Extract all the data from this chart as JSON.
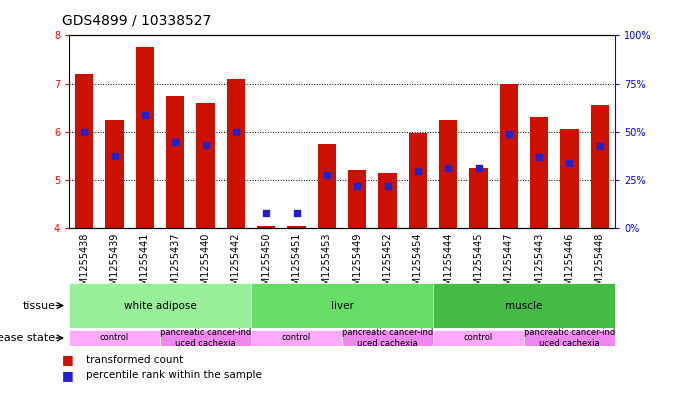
{
  "title": "GDS4899 / 10338527",
  "samples": [
    "GSM1255438",
    "GSM1255439",
    "GSM1255441",
    "GSM1255437",
    "GSM1255440",
    "GSM1255442",
    "GSM1255450",
    "GSM1255451",
    "GSM1255453",
    "GSM1255449",
    "GSM1255452",
    "GSM1255454",
    "GSM1255444",
    "GSM1255445",
    "GSM1255447",
    "GSM1255443",
    "GSM1255446",
    "GSM1255448"
  ],
  "red_bar_heights": [
    7.2,
    6.25,
    7.75,
    6.75,
    6.6,
    7.1,
    4.05,
    4.05,
    5.75,
    5.2,
    5.15,
    5.97,
    6.25,
    5.25,
    7.0,
    6.3,
    6.05,
    6.55
  ],
  "blue_dot_values": [
    6.0,
    5.5,
    6.35,
    5.78,
    5.72,
    6.0,
    4.3,
    4.3,
    5.1,
    4.88,
    4.87,
    5.18,
    5.25,
    5.25,
    5.95,
    5.47,
    5.35,
    5.7
  ],
  "ylim_left": [
    4.0,
    8.0
  ],
  "ylim_right": [
    0,
    100
  ],
  "yticks_left": [
    4,
    5,
    6,
    7,
    8
  ],
  "yticks_right": [
    0,
    25,
    50,
    75,
    100
  ],
  "bar_color": "#cc1100",
  "dot_color": "#2222cc",
  "tissue_groups": [
    {
      "label": "white adipose",
      "start": 0,
      "end": 6,
      "color": "#99ee99"
    },
    {
      "label": "liver",
      "start": 6,
      "end": 12,
      "color": "#66dd66"
    },
    {
      "label": "muscle",
      "start": 12,
      "end": 18,
      "color": "#44bb44"
    }
  ],
  "disease_groups": [
    {
      "label": "control",
      "start": 0,
      "end": 3,
      "color": "#ffaaff"
    },
    {
      "label": "pancreatic cancer-ind\nuced cachexia",
      "start": 3,
      "end": 6,
      "color": "#ee88ee"
    },
    {
      "label": "control",
      "start": 6,
      "end": 9,
      "color": "#ffaaff"
    },
    {
      "label": "pancreatic cancer-ind\nuced cachexia",
      "start": 9,
      "end": 12,
      "color": "#ee88ee"
    },
    {
      "label": "control",
      "start": 12,
      "end": 15,
      "color": "#ffaaff"
    },
    {
      "label": "pancreatic cancer-ind\nuced cachexia",
      "start": 15,
      "end": 18,
      "color": "#ee88ee"
    }
  ],
  "xtick_bg_color": "#cccccc",
  "tissue_label": "tissue",
  "disease_label": "disease state",
  "legend_red": "transformed count",
  "legend_blue": "percentile rank within the sample",
  "bar_width": 0.6,
  "title_fontsize": 10,
  "tick_fontsize": 7,
  "label_fontsize": 8
}
